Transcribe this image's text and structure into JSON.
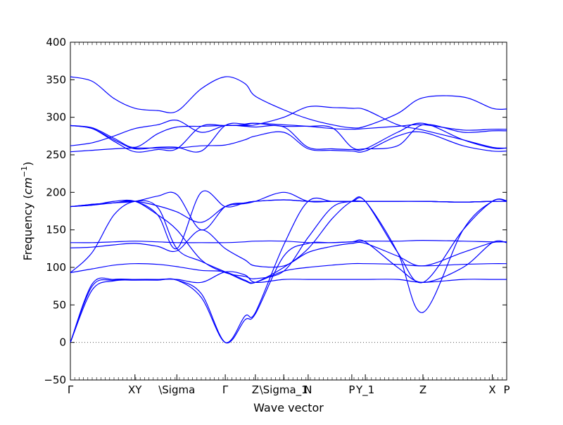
{
  "chart_data": {
    "type": "line",
    "title": "",
    "xlabel": "Wave vector",
    "ylabel_prefix": "Frequency (",
    "ylabel_unit": "cm",
    "ylabel_exp": "−1",
    "ylabel_suffix": ")",
    "ylim": [
      -50,
      400
    ],
    "xlim": [
      0,
      1
    ],
    "grid": false,
    "y_ticks": [
      -50,
      0,
      50,
      100,
      150,
      200,
      250,
      300,
      350,
      400
    ],
    "y_tick_labels": [
      "−50",
      "0",
      "50",
      "100",
      "150",
      "200",
      "250",
      "300",
      "350",
      "400"
    ],
    "x_ticks": [
      {
        "x": 0.0,
        "label": "Γ"
      },
      {
        "x": 0.148,
        "label": "XY"
      },
      {
        "x": 0.244,
        "label": "\\Sigma"
      },
      {
        "x": 0.355,
        "label": "Γ"
      },
      {
        "x": 0.424,
        "label": "Z"
      },
      {
        "x": 0.489,
        "label": "\\Sigma_1"
      },
      {
        "x": 0.545,
        "label": "N"
      },
      {
        "x": 0.645,
        "label": "P"
      },
      {
        "x": 0.676,
        "label": "Y_1"
      },
      {
        "x": 0.808,
        "label": "Z"
      },
      {
        "x": 0.967,
        "label": "X"
      },
      {
        "x": 1.0,
        "label": "P"
      }
    ],
    "zero_line": 0,
    "line_color": "#0000ff",
    "series": [
      {
        "x": [
          0,
          0.05,
          0.1,
          0.148,
          0.2,
          0.244,
          0.3,
          0.355,
          0.4,
          0.424,
          0.489,
          0.545,
          0.6,
          0.645,
          0.676,
          0.75,
          0.808,
          0.9,
          0.967,
          1.0
        ],
        "y": [
          0,
          70,
          82,
          83,
          83,
          83,
          60,
          0,
          35,
          40,
          130,
          188,
          188,
          188,
          188,
          120,
          40,
          150,
          188,
          188
        ]
      },
      {
        "x": [
          0,
          0.05,
          0.1,
          0.148,
          0.2,
          0.244,
          0.3,
          0.355,
          0.4,
          0.424,
          0.489,
          0.545,
          0.6,
          0.645,
          0.676,
          0.75,
          0.808,
          0.9,
          0.967,
          1.0
        ],
        "y": [
          0,
          75,
          83,
          84,
          84,
          83,
          65,
          0,
          30,
          38,
          115,
          132,
          133,
          134,
          134,
          100,
          80,
          100,
          133,
          133
        ]
      },
      {
        "x": [
          0,
          0.05,
          0.1,
          0.148,
          0.2,
          0.244,
          0.3,
          0.355,
          0.4,
          0.424,
          0.489,
          0.545,
          0.6,
          0.645,
          0.676,
          0.75,
          0.808,
          0.9,
          0.967,
          1.0
        ],
        "y": [
          0,
          78,
          84,
          84,
          84,
          84,
          80,
          94,
          90,
          80,
          84,
          84,
          84,
          84,
          84,
          84,
          80,
          84,
          84,
          84
        ]
      },
      {
        "x": [
          0,
          0.05,
          0.1,
          0.148,
          0.2,
          0.244,
          0.3,
          0.355,
          0.4,
          0.424,
          0.489,
          0.545,
          0.6,
          0.645,
          0.676,
          0.75,
          0.808,
          0.9,
          0.967,
          1.0
        ],
        "y": [
          93,
          98,
          103,
          105,
          104,
          101,
          96,
          94,
          83,
          80,
          95,
          100,
          103,
          105,
          105,
          104,
          102,
          104,
          105,
          105
        ]
      },
      {
        "x": [
          0,
          0.05,
          0.1,
          0.148,
          0.2,
          0.244,
          0.3,
          0.355,
          0.4,
          0.424,
          0.489,
          0.545,
          0.6,
          0.645,
          0.676,
          0.75,
          0.808,
          0.9,
          0.967,
          1.0
        ],
        "y": [
          93,
          120,
          170,
          188,
          180,
          125,
          108,
          94,
          82,
          80,
          100,
          125,
          165,
          188,
          188,
          120,
          80,
          150,
          188,
          189
        ]
      },
      {
        "x": [
          0,
          0.05,
          0.1,
          0.148,
          0.2,
          0.244,
          0.3,
          0.355,
          0.4,
          0.424,
          0.489,
          0.545,
          0.6,
          0.645,
          0.676,
          0.75,
          0.808,
          0.9,
          0.967,
          1.0
        ],
        "y": [
          126,
          127,
          130,
          132,
          128,
          122,
          150,
          125,
          110,
          102,
          102,
          120,
          128,
          132,
          132,
          115,
          102,
          120,
          133,
          134
        ]
      },
      {
        "x": [
          0,
          0.05,
          0.1,
          0.148,
          0.2,
          0.244,
          0.3,
          0.355,
          0.4,
          0.424,
          0.489,
          0.545,
          0.6,
          0.645,
          0.676,
          0.75,
          0.808,
          0.9,
          0.967,
          1.0
        ],
        "y": [
          133,
          133,
          134,
          135,
          134,
          133,
          133,
          133,
          134,
          135,
          135,
          133,
          133,
          134,
          135,
          135,
          136,
          135,
          134,
          134
        ]
      },
      {
        "x": [
          0,
          0.05,
          0.1,
          0.148,
          0.2,
          0.244,
          0.3,
          0.355,
          0.4,
          0.424,
          0.489,
          0.545,
          0.6,
          0.645,
          0.676,
          0.75,
          0.808,
          0.9,
          0.967,
          1.0
        ],
        "y": [
          181,
          183,
          188,
          188,
          170,
          150,
          110,
          93,
          88,
          85,
          95,
          140,
          180,
          188,
          188,
          188,
          188,
          187,
          188,
          188
        ]
      },
      {
        "x": [
          0,
          0.05,
          0.1,
          0.148,
          0.2,
          0.244,
          0.3,
          0.355,
          0.4,
          0.424,
          0.489,
          0.545,
          0.6,
          0.645,
          0.676,
          0.75,
          0.808,
          0.9,
          0.967,
          1.0
        ],
        "y": [
          181,
          183,
          186,
          188,
          182,
          174,
          160,
          181,
          185,
          188,
          200,
          188,
          188,
          188,
          188,
          188,
          188,
          187,
          188,
          188
        ]
      },
      {
        "x": [
          0,
          0.05,
          0.1,
          0.148,
          0.2,
          0.244,
          0.3,
          0.355,
          0.4,
          0.424,
          0.489,
          0.545,
          0.6,
          0.645,
          0.676,
          0.75,
          0.808,
          0.9,
          0.967,
          1.0
        ],
        "y": [
          181,
          184,
          186,
          188,
          195,
          197,
          150,
          181,
          186,
          188,
          190,
          188,
          188,
          188,
          188,
          188,
          188,
          187,
          188,
          188
        ]
      },
      {
        "x": [
          0,
          0.05,
          0.1,
          0.148,
          0.2,
          0.244,
          0.3,
          0.355,
          0.4,
          0.424,
          0.489,
          0.545,
          0.6,
          0.645,
          0.676,
          0.75,
          0.808,
          0.9,
          0.967,
          1.0
        ],
        "y": [
          181,
          184,
          186,
          188,
          170,
          125,
          200,
          181,
          186,
          188,
          190,
          188,
          188,
          188,
          188,
          188,
          188,
          187,
          188,
          188
        ]
      },
      {
        "x": [
          0,
          0.05,
          0.1,
          0.148,
          0.2,
          0.244,
          0.3,
          0.355,
          0.4,
          0.424,
          0.489,
          0.545,
          0.6,
          0.645,
          0.676,
          0.75,
          0.808,
          0.9,
          0.967,
          1.0
        ],
        "y": [
          254,
          256,
          258,
          259,
          259,
          259,
          262,
          263,
          270,
          275,
          280,
          258,
          256,
          255,
          255,
          275,
          280,
          262,
          255,
          255
        ]
      },
      {
        "x": [
          0,
          0.05,
          0.1,
          0.148,
          0.2,
          0.244,
          0.3,
          0.355,
          0.4,
          0.424,
          0.489,
          0.545,
          0.6,
          0.645,
          0.676,
          0.75,
          0.808,
          0.9,
          0.967,
          1.0
        ],
        "y": [
          262,
          266,
          275,
          285,
          290,
          296,
          280,
          289,
          288,
          287,
          287,
          260,
          258,
          257,
          258,
          280,
          292,
          270,
          259,
          259
        ]
      },
      {
        "x": [
          0,
          0.05,
          0.1,
          0.148,
          0.2,
          0.244,
          0.3,
          0.355,
          0.4,
          0.424,
          0.489,
          0.545,
          0.6,
          0.645,
          0.676,
          0.75,
          0.808,
          0.9,
          0.967,
          1.0
        ],
        "y": [
          289,
          285,
          268,
          254,
          257,
          258,
          288,
          289,
          290,
          292,
          290,
          288,
          285,
          284,
          285,
          288,
          290,
          283,
          284,
          284
        ]
      },
      {
        "x": [
          0,
          0.05,
          0.1,
          0.148,
          0.2,
          0.244,
          0.3,
          0.355,
          0.4,
          0.424,
          0.489,
          0.545,
          0.6,
          0.645,
          0.676,
          0.75,
          0.808,
          0.9,
          0.967,
          1.0
        ],
        "y": [
          289,
          285,
          270,
          258,
          260,
          260,
          255,
          289,
          291,
          292,
          288,
          288,
          286,
          260,
          258,
          262,
          290,
          280,
          282,
          282
        ]
      },
      {
        "x": [
          0,
          0.05,
          0.1,
          0.148,
          0.2,
          0.244,
          0.3,
          0.355,
          0.4,
          0.424,
          0.489,
          0.545,
          0.6,
          0.645,
          0.676,
          0.75,
          0.808,
          0.9,
          0.967,
          1.0
        ],
        "y": [
          289,
          286,
          272,
          260,
          278,
          287,
          288,
          289,
          289,
          290,
          300,
          314,
          313,
          312,
          310,
          290,
          283,
          270,
          260,
          259
        ]
      },
      {
        "x": [
          0,
          0.05,
          0.1,
          0.148,
          0.2,
          0.244,
          0.3,
          0.355,
          0.4,
          0.424,
          0.489,
          0.545,
          0.6,
          0.645,
          0.676,
          0.75,
          0.808,
          0.9,
          0.967,
          1.0
        ],
        "y": [
          354,
          348,
          325,
          312,
          309,
          308,
          338,
          354,
          345,
          328,
          310,
          298,
          290,
          286,
          288,
          305,
          326,
          327,
          312,
          311
        ]
      }
    ]
  }
}
